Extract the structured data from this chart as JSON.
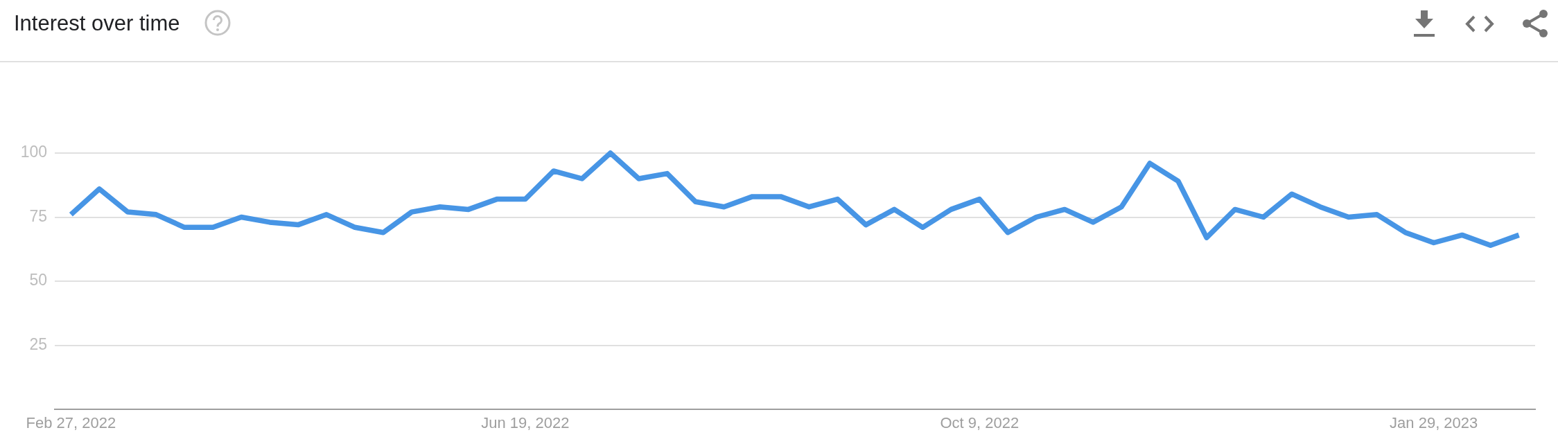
{
  "chart_data": {
    "type": "line",
    "title": "Interest over time",
    "x": [
      "2022-02-27",
      "2022-03-06",
      "2022-03-13",
      "2022-03-20",
      "2022-03-27",
      "2022-04-03",
      "2022-04-10",
      "2022-04-17",
      "2022-04-24",
      "2022-05-01",
      "2022-05-08",
      "2022-05-15",
      "2022-05-22",
      "2022-05-29",
      "2022-06-05",
      "2022-06-12",
      "2022-06-19",
      "2022-06-26",
      "2022-07-03",
      "2022-07-10",
      "2022-07-17",
      "2022-07-24",
      "2022-07-31",
      "2022-08-07",
      "2022-08-14",
      "2022-08-21",
      "2022-08-28",
      "2022-09-04",
      "2022-09-11",
      "2022-09-18",
      "2022-09-25",
      "2022-10-02",
      "2022-10-09",
      "2022-10-16",
      "2022-10-23",
      "2022-10-30",
      "2022-11-06",
      "2022-11-13",
      "2022-11-20",
      "2022-11-27",
      "2022-12-04",
      "2022-12-11",
      "2022-12-18",
      "2022-12-25",
      "2023-01-01",
      "2023-01-08",
      "2023-01-15",
      "2023-01-22",
      "2023-01-29",
      "2023-02-05",
      "2023-02-12",
      "2023-02-19"
    ],
    "series": [
      {
        "color": "#4795e5",
        "values": [
          76,
          86,
          77,
          76,
          71,
          71,
          75,
          73,
          72,
          76,
          71,
          69,
          77,
          79,
          78,
          82,
          82,
          93,
          90,
          100,
          90,
          92,
          81,
          79,
          83,
          83,
          79,
          82,
          72,
          78,
          71,
          78,
          82,
          69,
          75,
          78,
          73,
          79,
          96,
          89,
          67,
          78,
          75,
          84,
          79,
          75,
          76,
          69,
          65,
          68,
          64,
          68
        ]
      }
    ],
    "xlim": [
      "2022-02-23",
      "2023-02-23"
    ],
    "xticks": [
      {
        "value": "2022-02-27",
        "label": "Feb 27, 2022"
      },
      {
        "value": "2022-06-19",
        "label": "Jun 19, 2022"
      },
      {
        "value": "2022-10-09",
        "label": "Oct 9, 2022"
      },
      {
        "value": "2023-01-29",
        "label": "Jan 29, 2023"
      }
    ],
    "ylim": [
      0,
      100
    ],
    "yticks": [
      25,
      50,
      75,
      100
    ],
    "grid": "y",
    "line_style": "solid"
  }
}
